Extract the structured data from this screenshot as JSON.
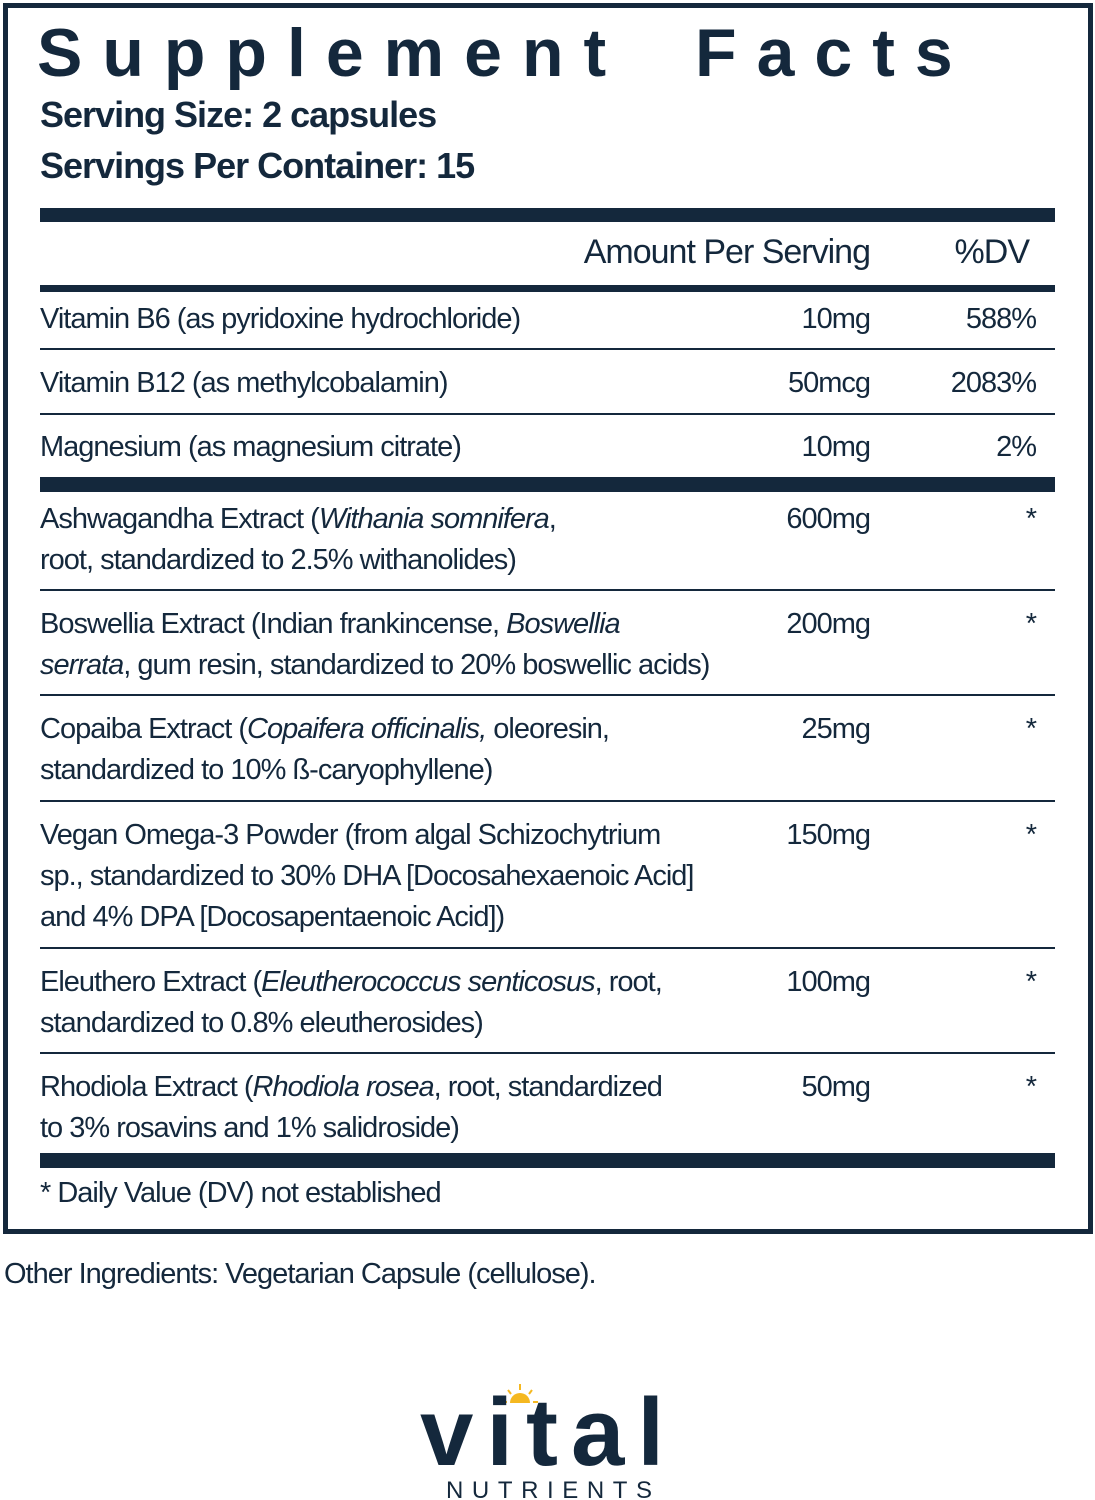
{
  "title": "Supplement Facts",
  "serving_size": "Serving Size: 2 capsules",
  "servings_per_container": "Servings Per Container: 15",
  "header": {
    "amount": "Amount Per Serving",
    "dv": "%DV"
  },
  "vitamins": [
    {
      "name": [
        {
          "t": "Vitamin B6 (as pyridoxine hydrochloride)"
        }
      ],
      "amount": "10mg",
      "dv": "588%"
    },
    {
      "name": [
        {
          "t": "Vitamin B12 (as methylcobalamin)"
        }
      ],
      "amount": "50mcg",
      "dv": "2083%"
    },
    {
      "name": [
        {
          "t": "Magnesium (as magnesium citrate)"
        }
      ],
      "amount": "10mg",
      "dv": "2%"
    }
  ],
  "extracts": [
    {
      "name": [
        {
          "t": "Ashwagandha Extract ("
        },
        {
          "t": "Withania somnifera",
          "i": true
        },
        {
          "t": ","
        },
        {
          "br": true
        },
        {
          "t": "root, standardized to 2.5% withanolides)"
        }
      ],
      "amount": "600mg",
      "dv": "*"
    },
    {
      "name": [
        {
          "t": "Boswellia Extract (Indian frankincense, "
        },
        {
          "t": "Boswellia",
          "i": true
        },
        {
          "br": true
        },
        {
          "t": "serrata",
          "i": true
        },
        {
          "t": ", gum resin, standardized to 20% boswellic acids)"
        }
      ],
      "amount": "200mg",
      "dv": "*"
    },
    {
      "name": [
        {
          "t": "Copaiba Extract ("
        },
        {
          "t": "Copaifera officinalis,",
          "i": true
        },
        {
          "t": " oleoresin,"
        },
        {
          "br": true
        },
        {
          "t": "standardized to 10% ß-caryophyllene)"
        }
      ],
      "amount": "25mg",
      "dv": "*"
    },
    {
      "name": [
        {
          "t": "Vegan Omega-3 Powder (from algal Schizochytrium"
        },
        {
          "br": true
        },
        {
          "t": "sp., standardized to 30% DHA [Docosahexaenoic Acid]"
        },
        {
          "br": true
        },
        {
          "t": "and 4% DPA [Docosapentaenoic Acid])"
        }
      ],
      "amount": "150mg",
      "dv": "*"
    },
    {
      "name": [
        {
          "t": "Eleuthero Extract ("
        },
        {
          "t": "Eleutherococcus senticosus",
          "i": true
        },
        {
          "t": ", root,"
        },
        {
          "br": true
        },
        {
          "t": "standardized to 0.8% eleutherosides)"
        }
      ],
      "amount": "100mg",
      "dv": "*"
    },
    {
      "name": [
        {
          "t": "Rhodiola Extract ("
        },
        {
          "t": "Rhodiola rosea",
          "i": true
        },
        {
          "t": ", root, standardized"
        },
        {
          "br": true
        },
        {
          "t": "to 3% rosavins and 1% salidroside)"
        }
      ],
      "amount": "50mg",
      "dv": "*"
    }
  ],
  "footnote": "* Daily Value (DV) not established",
  "other_ingredients": "Other Ingredients: Vegetarian Capsule (cellulose).",
  "logo": {
    "word": "vital",
    "sub": "NUTRIENTS"
  },
  "colors": {
    "navy": "#14283c",
    "sun": "#f5b820"
  }
}
